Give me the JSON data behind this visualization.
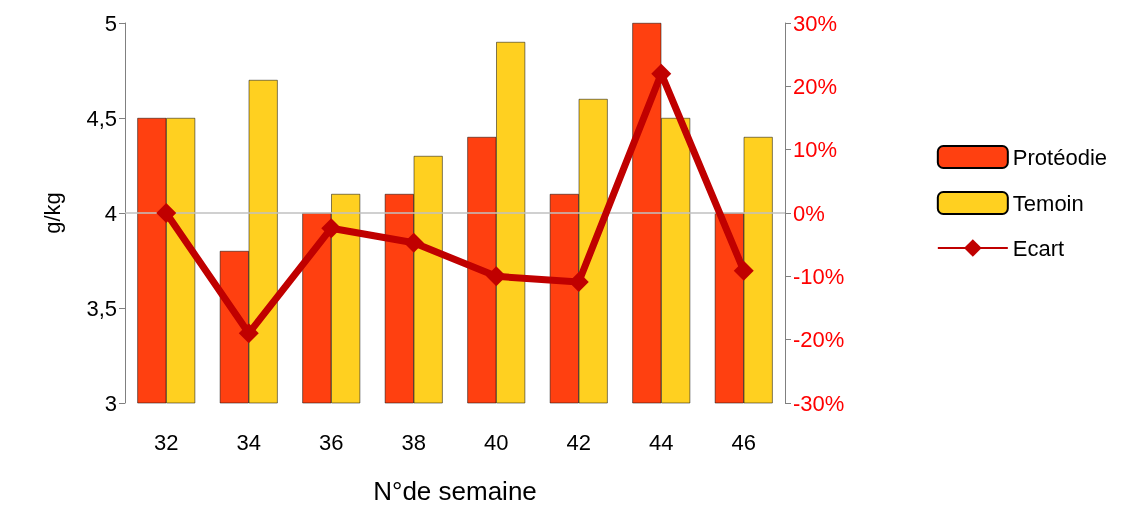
{
  "chart_data": {
    "type": "bar",
    "xlabel": "N°de semaine",
    "ylabel": "g/kg",
    "categories": [
      "32",
      "34",
      "36",
      "38",
      "40",
      "42",
      "44",
      "46"
    ],
    "series": [
      {
        "name": "Protéodie",
        "color": "#ff4010",
        "values": [
          4.5,
          3.8,
          4.0,
          4.1,
          4.4,
          4.1,
          5.0,
          4.0
        ]
      },
      {
        "name": "Temoin",
        "color": "#ffd020",
        "values": [
          4.5,
          4.7,
          4.1,
          4.3,
          4.9,
          4.6,
          4.5,
          4.4
        ]
      },
      {
        "name": "Ecart",
        "type": "line",
        "axis": "y2",
        "color": "#c00000",
        "values": [
          0,
          -19,
          -2.4,
          -4.7,
          -10,
          -10.9,
          22,
          -9.1
        ]
      }
    ],
    "ylim": [
      3,
      5
    ],
    "yticks": [
      3,
      {
        "value": 3.5,
        "label": "3,5"
      },
      4,
      {
        "value": 4.5,
        "label": "4,5"
      },
      5
    ],
    "y2lim": [
      -30,
      30
    ],
    "y2ticks": [
      {
        "value": -30,
        "label": "-30%"
      },
      {
        "value": -20,
        "label": "-20%"
      },
      {
        "value": -10,
        "label": "-10%"
      },
      {
        "value": 0,
        "label": "0%"
      },
      {
        "value": 10,
        "label": "10%"
      },
      {
        "value": 20,
        "label": "20%"
      },
      {
        "value": 30,
        "label": "30%"
      }
    ],
    "ref_lines": [
      {
        "axis": "y2",
        "value": 0,
        "color": "#c0c0c0"
      }
    ],
    "grid": false,
    "legend": "right",
    "marker": "diamond",
    "line_style": "solid"
  }
}
